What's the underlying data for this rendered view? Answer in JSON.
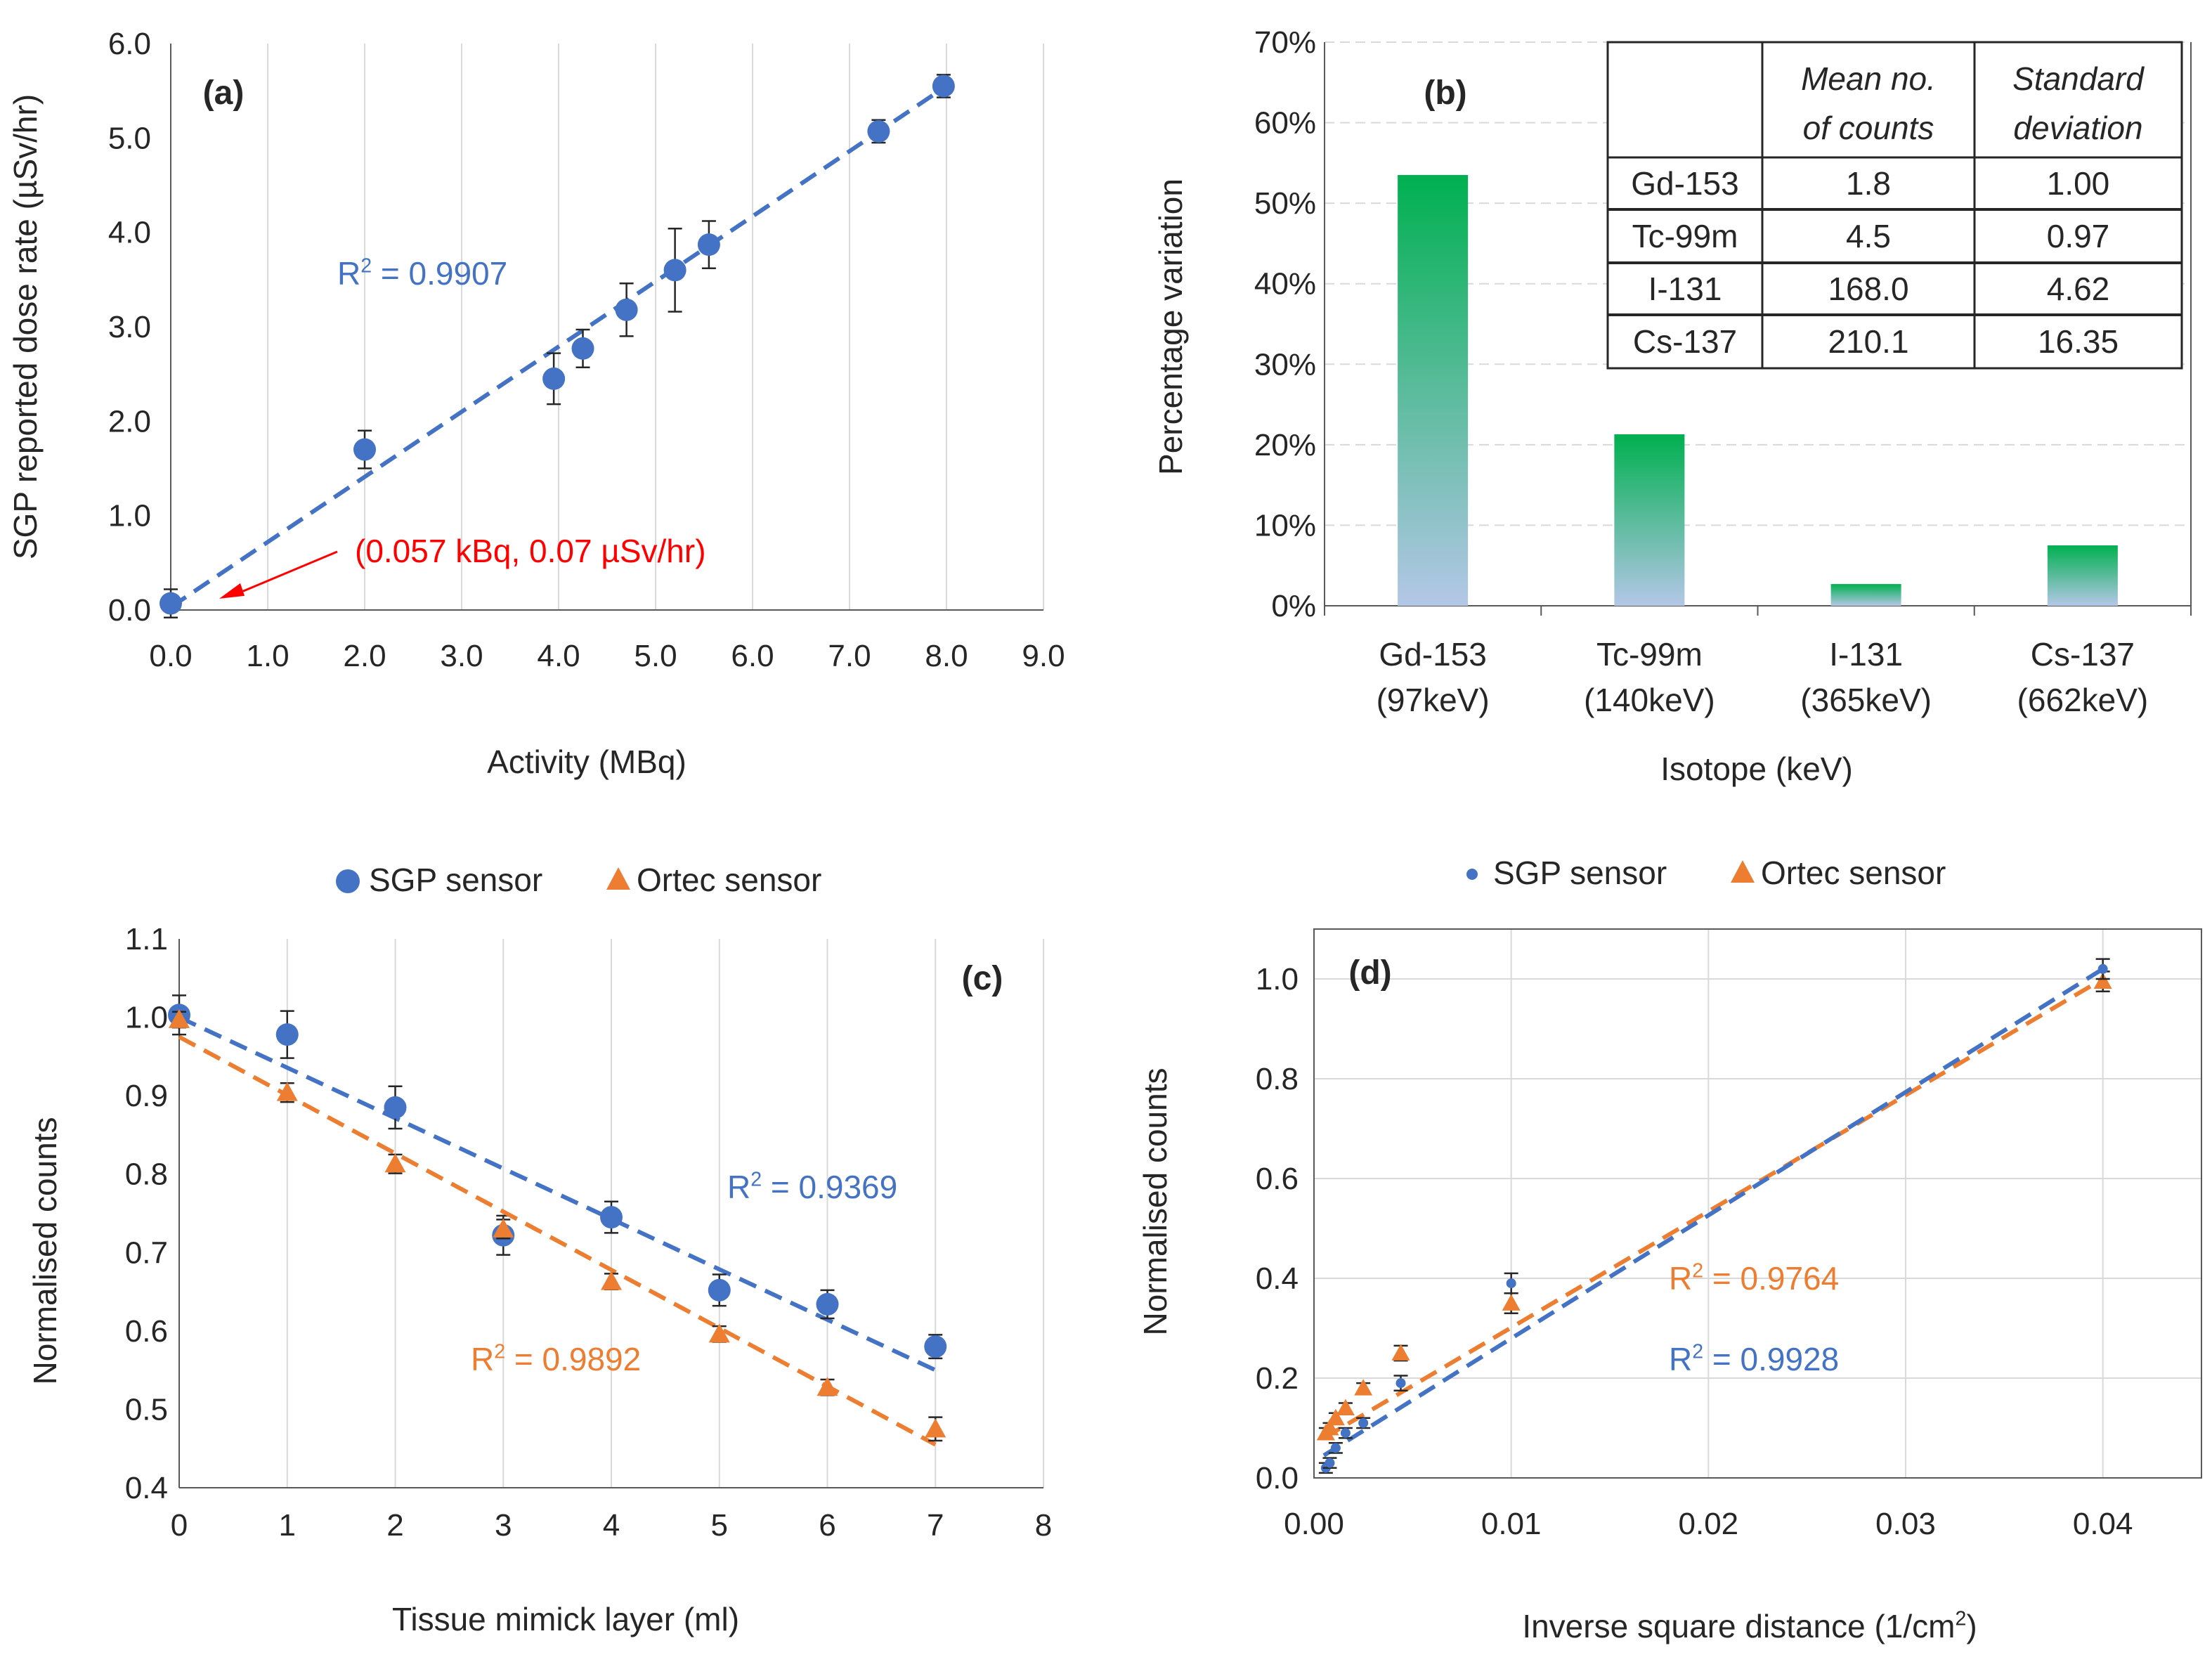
{
  "figure": {
    "panels": [
      "a",
      "b",
      "c",
      "d"
    ]
  },
  "chart_data": [
    {
      "id": "a",
      "type": "scatter",
      "panel_label": "(a)",
      "xlabel": "Activity (MBq)",
      "ylabel": "SGP reported dose rate (µSv/hr)",
      "xlim": [
        0,
        9
      ],
      "ylim": [
        0,
        6
      ],
      "xticks": [
        "0.0",
        "1.0",
        "2.0",
        "3.0",
        "4.0",
        "5.0",
        "6.0",
        "7.0",
        "8.0",
        "9.0"
      ],
      "yticks": [
        "0.0",
        "1.0",
        "2.0",
        "3.0",
        "4.0",
        "5.0",
        "6.0"
      ],
      "grid": "vertical",
      "series": [
        {
          "name": "SGP sensor",
          "color": "#4472C4",
          "marker": "circle",
          "x": [
            0.0,
            2.0,
            3.95,
            4.25,
            4.7,
            5.2,
            5.55,
            7.3,
            7.97
          ],
          "y": [
            0.07,
            1.7,
            2.45,
            2.77,
            3.18,
            3.6,
            3.87,
            5.07,
            5.55
          ],
          "err": [
            0.15,
            0.2,
            0.27,
            0.2,
            0.28,
            0.44,
            0.25,
            0.12,
            0.12
          ],
          "trend": {
            "x": [
              0.0,
              8.0
            ],
            "y": [
              0.03,
              5.55
            ]
          },
          "r2_label": "R² = 0.9907"
        }
      ],
      "annotation": {
        "text": "(0.057 kBq, 0.07 µSv/hr)",
        "color": "#FF0000",
        "arrow_to": [
          0.5,
          0.12
        ]
      }
    },
    {
      "id": "b",
      "type": "bar",
      "panel_label": "(b)",
      "xlabel": "Isotope (keV)",
      "ylabel": "Percentage variation",
      "categories": [
        [
          "Gd-153",
          "(97keV)"
        ],
        [
          "Tc-99m",
          "(140keV)"
        ],
        [
          "I-131",
          "(365keV)"
        ],
        [
          "Cs-137",
          "(662keV)"
        ]
      ],
      "values": [
        53.5,
        21.3,
        2.7,
        7.5
      ],
      "ylim": [
        0,
        70
      ],
      "yticks": [
        "0%",
        "10%",
        "20%",
        "30%",
        "40%",
        "50%",
        "60%",
        "70%"
      ],
      "grid": "horizontal-dashed",
      "bar_colors": {
        "top": "#00B050",
        "bottom": "#B4C7E7"
      },
      "table": {
        "headers": [
          "",
          "Mean no. of counts",
          "Standard deviation"
        ],
        "header_lines": [
          [
            "Mean no.",
            "of counts"
          ],
          [
            "Standard",
            "deviation"
          ]
        ],
        "rows": [
          [
            "Gd-153",
            "1.8",
            "1.00"
          ],
          [
            "Tc-99m",
            "4.5",
            "0.97"
          ],
          [
            "I-131",
            "168.0",
            "4.62"
          ],
          [
            "Cs-137",
            "210.1",
            "16.35"
          ]
        ]
      }
    },
    {
      "id": "c",
      "type": "scatter",
      "panel_label": "(c)",
      "xlabel": "Tissue mimick layer (ml)",
      "ylabel": "Normalised counts",
      "xlim": [
        0,
        8
      ],
      "ylim": [
        0.4,
        1.1
      ],
      "xticks": [
        "0",
        "1",
        "2",
        "3",
        "4",
        "5",
        "6",
        "7",
        "8"
      ],
      "yticks": [
        "0.4",
        "0.5",
        "0.6",
        "0.7",
        "0.8",
        "0.9",
        "1.0",
        "1.1"
      ],
      "grid": "vertical",
      "legend": {
        "position": "top",
        "items": [
          "SGP sensor",
          "Ortec sensor"
        ]
      },
      "series": [
        {
          "name": "SGP sensor",
          "color": "#4472C4",
          "marker": "circle",
          "x": [
            0,
            1,
            2,
            3,
            4,
            5,
            6,
            7
          ],
          "y": [
            1.003,
            0.978,
            0.885,
            0.722,
            0.745,
            0.652,
            0.634,
            0.58
          ],
          "err": [
            0.025,
            0.03,
            0.027,
            0.025,
            0.02,
            0.02,
            0.018,
            0.015
          ],
          "trend": {
            "x": [
              0,
              7
            ],
            "y": [
              1.0,
              0.55
            ]
          },
          "r2_label": "R² = 0.9369"
        },
        {
          "name": "Ortec sensor",
          "color": "#ED7D31",
          "marker": "triangle",
          "x": [
            0,
            1,
            2,
            3,
            4,
            5,
            6,
            7
          ],
          "y": [
            0.997,
            0.904,
            0.813,
            0.73,
            0.663,
            0.596,
            0.528,
            0.475
          ],
          "err": [
            0.01,
            0.012,
            0.012,
            0.012,
            0.01,
            0.01,
            0.01,
            0.015
          ],
          "trend": {
            "x": [
              0,
              7
            ],
            "y": [
              0.975,
              0.455
            ]
          },
          "r2_label": "R² = 0.9892"
        }
      ]
    },
    {
      "id": "d",
      "type": "scatter",
      "panel_label": "(d)",
      "xlabel": "Inverse square distance (1/cm²)",
      "ylabel": "Normalised counts",
      "xlim": [
        0,
        0.045
      ],
      "ylim": [
        0,
        1.1
      ],
      "xticks": [
        "0.00",
        "0.01",
        "0.02",
        "0.03",
        "0.04"
      ],
      "xtick_values": [
        0,
        0.01,
        0.02,
        0.03,
        0.04
      ],
      "yticks": [
        "0.0",
        "0.2",
        "0.4",
        "0.6",
        "0.8",
        "1.0"
      ],
      "ytick_values": [
        0,
        0.2,
        0.4,
        0.6,
        0.8,
        1.0
      ],
      "grid": "both",
      "legend": {
        "position": "top",
        "items": [
          "SGP sensor",
          "Ortec sensor"
        ]
      },
      "series": [
        {
          "name": "SGP sensor",
          "color": "#4472C4",
          "marker": "small-circle",
          "x": [
            0.0006,
            0.0008,
            0.0011,
            0.0016,
            0.0025,
            0.0044,
            0.01,
            0.04
          ],
          "y": [
            0.02,
            0.03,
            0.06,
            0.09,
            0.11,
            0.19,
            0.39,
            1.02
          ],
          "err": [
            0.01,
            0.01,
            0.01,
            0.01,
            0.01,
            0.015,
            0.02,
            0.02
          ],
          "trend": {
            "x": [
              0.0005,
              0.04
            ],
            "y": [
              0.045,
              1.02
            ]
          },
          "r2_label": "R² = 0.9928"
        },
        {
          "name": "Ortec sensor",
          "color": "#ED7D31",
          "marker": "triangle",
          "x": [
            0.0006,
            0.0008,
            0.0011,
            0.0016,
            0.0025,
            0.0044,
            0.01,
            0.04
          ],
          "y": [
            0.09,
            0.1,
            0.12,
            0.14,
            0.18,
            0.25,
            0.35,
            0.995
          ],
          "err": [
            0.01,
            0.01,
            0.01,
            0.01,
            0.01,
            0.015,
            0.02,
            0.02
          ],
          "trend": {
            "x": [
              0.0005,
              0.04
            ],
            "y": [
              0.08,
              1.0
            ]
          },
          "r2_label": "R² = 0.9764"
        }
      ]
    }
  ]
}
